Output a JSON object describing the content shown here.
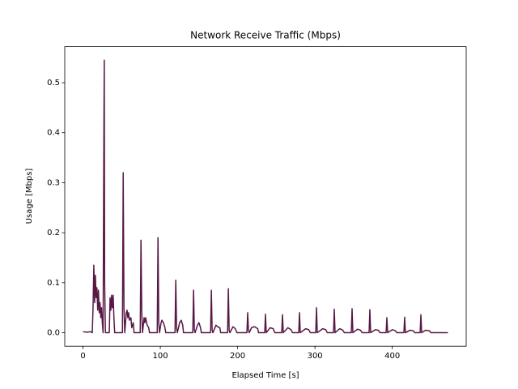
{
  "chart_data": {
    "type": "line",
    "title": "Network Receive Traffic (Mbps)",
    "x_label": "Elapsed Time [s]",
    "y_label": "Usage [Mbps]",
    "color": "#571845",
    "x": [
      0,
      5,
      10,
      12,
      13,
      14,
      15,
      16,
      17,
      18,
      19,
      20,
      21,
      22,
      23,
      24,
      25,
      26,
      27,
      27.5,
      28,
      29,
      34,
      35,
      36,
      37,
      38,
      39,
      40,
      41,
      51,
      52,
      53,
      54,
      56,
      57,
      58,
      59,
      60,
      62,
      63,
      65,
      66,
      74,
      75,
      76,
      77,
      79,
      80,
      81,
      83,
      85,
      86,
      96,
      97,
      98,
      99,
      101,
      102,
      104,
      106,
      107,
      119,
      120,
      121,
      122,
      125,
      127,
      129,
      130,
      142,
      143,
      144,
      145,
      148,
      150,
      152,
      153,
      165,
      166,
      167,
      168,
      172,
      174,
      177,
      178,
      187,
      188,
      189,
      190,
      194,
      197,
      199,
      212,
      213,
      214,
      215,
      218,
      222,
      226,
      227,
      235,
      236,
      237,
      242,
      246,
      248,
      257,
      258,
      259,
      265,
      269,
      271,
      279,
      280,
      281,
      288,
      292,
      294,
      301,
      302,
      303,
      310,
      314,
      316,
      324,
      325,
      326,
      332,
      336,
      338,
      347,
      348,
      349,
      355,
      359,
      361,
      370,
      371,
      372,
      378,
      382,
      384,
      392,
      393,
      394,
      400,
      404,
      406,
      415,
      416,
      417,
      423,
      427,
      429,
      436,
      437,
      438,
      443,
      448,
      450,
      472
    ],
    "values": [
      0.002,
      0.001,
      0.002,
      0,
      0.05,
      0.135,
      0.06,
      0.115,
      0.07,
      0.09,
      0.045,
      0.085,
      0.04,
      0.06,
      0.03,
      0.05,
      0.02,
      0,
      0.4,
      0.545,
      0.1,
      0,
      0,
      0.07,
      0.045,
      0.075,
      0.05,
      0.075,
      0.03,
      0,
      0,
      0.32,
      0.05,
      0,
      0.04,
      0.045,
      0.03,
      0.04,
      0.025,
      0.03,
      0.01,
      0.02,
      0,
      0,
      0.185,
      0.04,
      0,
      0.03,
      0.02,
      0.03,
      0.015,
      0.01,
      0,
      0,
      0.19,
      0.02,
      0,
      0.02,
      0.025,
      0.02,
      0.01,
      0,
      0,
      0.105,
      0.01,
      0,
      0.02,
      0.025,
      0.015,
      0,
      0,
      0.085,
      0.005,
      0,
      0.015,
      0.02,
      0.01,
      0,
      0,
      0.085,
      0.005,
      0,
      0.015,
      0.012,
      0.01,
      0,
      0,
      0.088,
      0.005,
      0,
      0.012,
      0.008,
      0,
      0,
      0.04,
      0.005,
      0,
      0.01,
      0.012,
      0.008,
      0,
      0,
      0.037,
      0,
      0.01,
      0.008,
      0,
      0,
      0.036,
      0,
      0.01,
      0.006,
      0,
      0,
      0.04,
      0,
      0.008,
      0.006,
      0,
      0,
      0.05,
      0,
      0.008,
      0.006,
      0,
      0,
      0.047,
      0,
      0.008,
      0.005,
      0,
      0,
      0.048,
      0,
      0.007,
      0.005,
      0,
      0,
      0.046,
      0,
      0.006,
      0.005,
      0,
      0,
      0.03,
      0,
      0.006,
      0.004,
      0,
      0,
      0.031,
      0,
      0.005,
      0.004,
      0,
      0,
      0.036,
      0,
      0.005,
      0.004,
      0,
      0
    ],
    "xlim": [
      -23.6,
      495.6
    ],
    "xticks": [
      0,
      100,
      200,
      300,
      400
    ],
    "ylim": [
      -0.027,
      0.572
    ],
    "yticks": [
      {
        "value": 0,
        "label": "0.0"
      },
      0.1,
      0.2,
      0.3,
      0.4,
      0.5
    ]
  }
}
